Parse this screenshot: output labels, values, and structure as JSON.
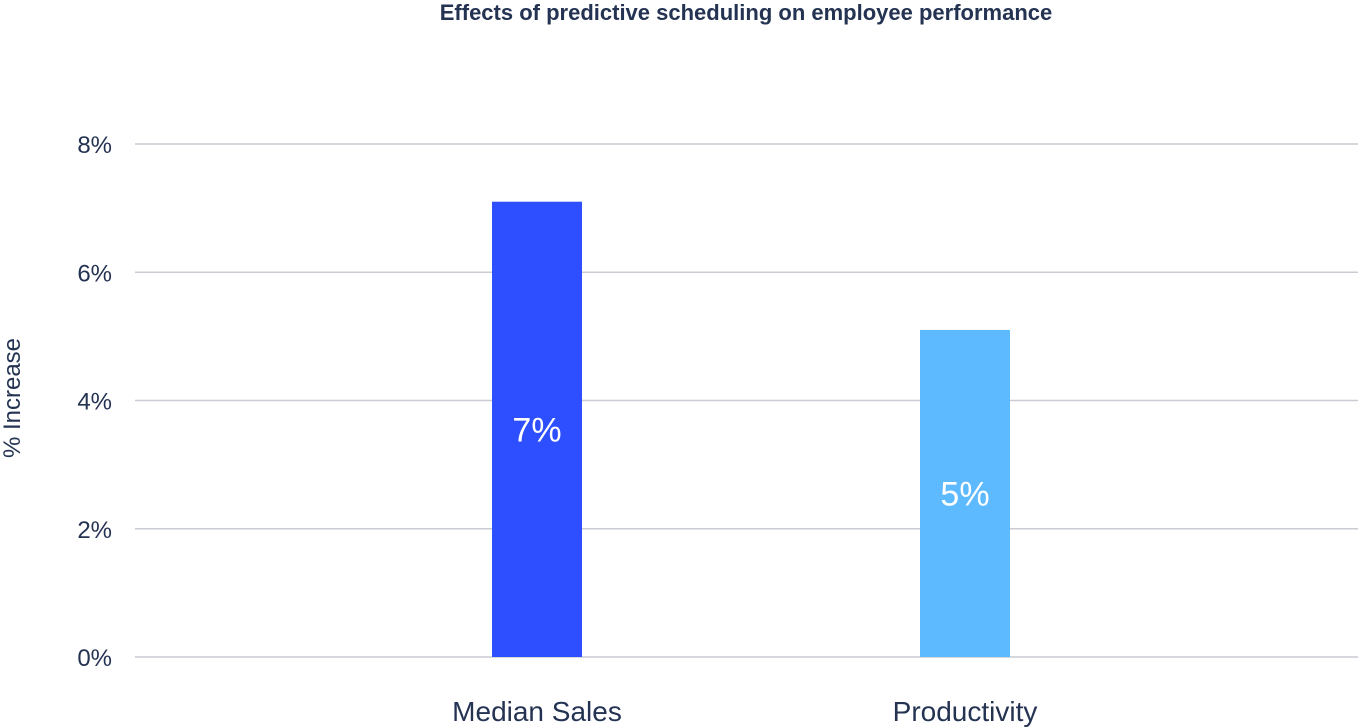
{
  "chart_data": {
    "type": "bar",
    "title": "Effects of predictive scheduling on employee performance",
    "ylabel": "% Increase",
    "xlabel": "",
    "categories": [
      "Median Sales",
      "Productivity"
    ],
    "values": [
      7.1,
      5.1
    ],
    "value_labels": [
      "7%",
      "5%"
    ],
    "colors": [
      "#2e4fff",
      "#5ebaff"
    ],
    "ylim": [
      0,
      8
    ],
    "yticks": [
      0,
      2,
      4,
      6,
      8
    ],
    "ytick_labels": [
      "0%",
      "2%",
      "4%",
      "6%",
      "8%"
    ],
    "grid": true,
    "legend": "none"
  }
}
